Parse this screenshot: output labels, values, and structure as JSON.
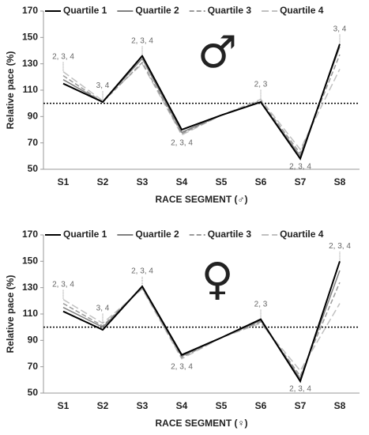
{
  "chart_data": [
    {
      "type": "line",
      "ylabel": "Relative pace (%)",
      "xlabel": "RACE SEGMENT (♂)",
      "symbol": "♂",
      "categories": [
        "S1",
        "S2",
        "S3",
        "S4",
        "S5",
        "S6",
        "S7",
        "S8"
      ],
      "ylim": [
        50,
        170
      ],
      "yticks": [
        50,
        70,
        90,
        110,
        130,
        150,
        170
      ],
      "reference_line": 100,
      "series": [
        {
          "name": "Quartile 1",
          "color": "#000000",
          "style": "solid",
          "values": [
            115,
            101,
            136,
            80,
            91,
            101,
            58,
            145
          ]
        },
        {
          "name": "Quartile 2",
          "color": "#808080",
          "style": "solid",
          "values": [
            118,
            101,
            134,
            78,
            91,
            101,
            60,
            143
          ]
        },
        {
          "name": "Quartile 3",
          "color": "#9a9a9a",
          "style": "dashed",
          "values": [
            121,
            101,
            131,
            77,
            91,
            102,
            62,
            137
          ]
        },
        {
          "name": "Quartile 4",
          "color": "#c0c0c0",
          "style": "long-dashed",
          "values": [
            124,
            102,
            130,
            76,
            91,
            103,
            65,
            126
          ]
        }
      ],
      "annotations": [
        {
          "category": "S1",
          "text": "2, 3, 4",
          "position": "above"
        },
        {
          "category": "S2",
          "text": "3, 4",
          "position": "above"
        },
        {
          "category": "S3",
          "text": "2, 3, 4",
          "position": "above"
        },
        {
          "category": "S4",
          "text": "2, 3, 4",
          "position": "below"
        },
        {
          "category": "S6",
          "text": "2, 3",
          "position": "above"
        },
        {
          "category": "S7",
          "text": "2, 3, 4",
          "position": "below"
        },
        {
          "category": "S8",
          "text": "3, 4",
          "position": "above"
        }
      ]
    },
    {
      "type": "line",
      "ylabel": "Relative pace (%)",
      "xlabel": "RACE SEGMENT (♀)",
      "symbol": "♀",
      "categories": [
        "S1",
        "S2",
        "S3",
        "S4",
        "S5",
        "S6",
        "S7",
        "S8"
      ],
      "ylim": [
        50,
        170
      ],
      "yticks": [
        50,
        70,
        90,
        110,
        130,
        150,
        170
      ],
      "reference_line": 100,
      "series": [
        {
          "name": "Quartile 1",
          "color": "#000000",
          "style": "solid",
          "values": [
            112,
            98,
            131,
            79,
            92,
            106,
            59,
            150
          ]
        },
        {
          "name": "Quartile 2",
          "color": "#808080",
          "style": "solid",
          "values": [
            115,
            100,
            130,
            78,
            92,
            105,
            61,
            143
          ]
        },
        {
          "name": "Quartile 3",
          "color": "#9a9a9a",
          "style": "dashed",
          "values": [
            118,
            101,
            130,
            77,
            92,
            104,
            63,
            134
          ]
        },
        {
          "name": "Quartile 4",
          "color": "#c0c0c0",
          "style": "long-dashed",
          "values": [
            121,
            103,
            129,
            76,
            92,
            103,
            67,
            118
          ]
        }
      ],
      "annotations": [
        {
          "category": "S1",
          "text": "2, 3, 4",
          "position": "above"
        },
        {
          "category": "S2",
          "text": "3, 4",
          "position": "above"
        },
        {
          "category": "S3",
          "text": "2, 3, 4",
          "position": "above"
        },
        {
          "category": "S4",
          "text": "2, 3, 4",
          "position": "below"
        },
        {
          "category": "S6",
          "text": "2, 3",
          "position": "above"
        },
        {
          "category": "S7",
          "text": "2, 3, 4",
          "position": "below"
        },
        {
          "category": "S8",
          "text": "2, 3, 4",
          "position": "above"
        }
      ]
    }
  ]
}
